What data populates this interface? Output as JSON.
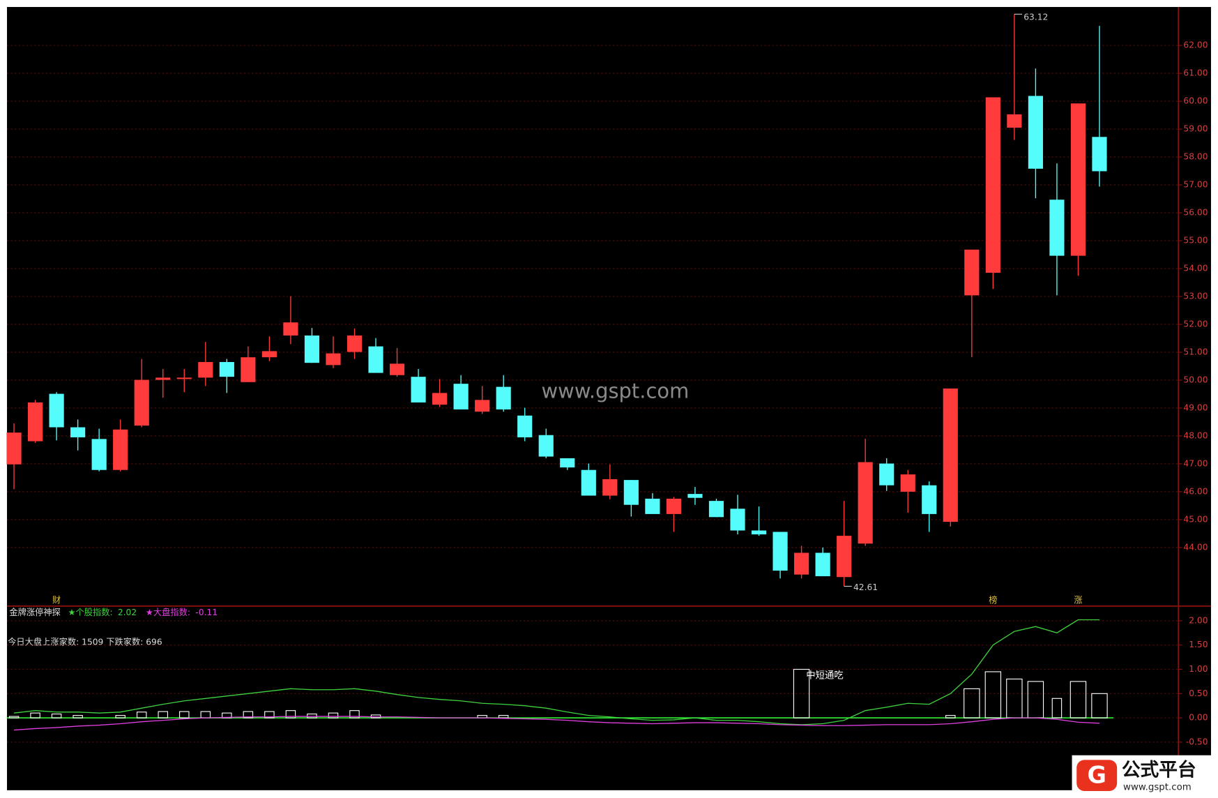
{
  "chart_data": [
    {
      "type": "candlestick",
      "categories": [
        null,
        null,
        null,
        null,
        null,
        null,
        null,
        null,
        null,
        null,
        null,
        null,
        null,
        null,
        null,
        null,
        null,
        null,
        null,
        null,
        null,
        null,
        null,
        null,
        null,
        null,
        null,
        null,
        null,
        null,
        null,
        null,
        null,
        null,
        null,
        null,
        null,
        null,
        null,
        null,
        null,
        null,
        null,
        null,
        null,
        null,
        null,
        null,
        null,
        null,
        null,
        null
      ],
      "open": [
        46.98,
        47.81,
        49.51,
        48.31,
        47.89,
        46.78,
        48.37,
        50.01,
        50.04,
        50.09,
        50.65,
        49.93,
        50.82,
        51.6,
        51.6,
        50.54,
        51.01,
        51.21,
        50.18,
        50.12,
        49.12,
        49.87,
        48.87,
        49.76,
        48.73,
        48.03,
        47.2,
        46.78,
        45.86,
        46.42,
        45.75,
        45.2,
        45.92,
        45.67,
        45.39,
        44.61,
        44.56,
        43.03,
        43.81,
        42.94,
        44.14,
        47.01,
        46.0,
        46.23,
        44.92,
        53.04,
        53.85,
        59.05,
        60.19,
        56.47,
        54.46,
        58.72
      ],
      "high": [
        48.45,
        49.29,
        49.57,
        48.59,
        48.26,
        48.59,
        50.76,
        50.4,
        50.4,
        51.37,
        50.76,
        51.21,
        51.57,
        53.01,
        51.87,
        51.57,
        51.85,
        51.51,
        51.15,
        50.4,
        50.04,
        50.18,
        49.79,
        50.18,
        49.01,
        48.26,
        47.2,
        47.01,
        46.98,
        46.42,
        45.95,
        45.81,
        46.17,
        45.75,
        45.89,
        45.47,
        44.56,
        44.06,
        44.0,
        45.67,
        47.9,
        47.2,
        46.78,
        46.37,
        49.7,
        54.68,
        60.14,
        63.12,
        61.17,
        57.77,
        59.92,
        62.7
      ],
      "low": [
        46.09,
        47.75,
        47.84,
        47.48,
        46.73,
        46.73,
        48.31,
        49.37,
        49.57,
        49.79,
        49.54,
        49.93,
        50.68,
        51.29,
        50.62,
        50.43,
        50.76,
        50.26,
        50.12,
        49.2,
        49.04,
        48.95,
        48.79,
        48.87,
        47.81,
        47.2,
        46.78,
        45.86,
        45.73,
        45.11,
        45.2,
        44.56,
        45.53,
        45.09,
        44.47,
        44.42,
        42.89,
        42.89,
        42.97,
        42.61,
        44.06,
        46.03,
        45.25,
        44.56,
        44.75,
        50.82,
        53.27,
        58.61,
        56.52,
        53.04,
        53.74,
        56.94
      ],
      "close": [
        48.12,
        49.2,
        48.31,
        47.95,
        46.78,
        48.23,
        50.01,
        50.09,
        50.09,
        50.65,
        50.12,
        50.82,
        51.04,
        52.07,
        50.62,
        50.96,
        51.6,
        50.26,
        50.59,
        49.2,
        49.54,
        48.95,
        49.29,
        48.95,
        47.95,
        47.26,
        46.87,
        45.86,
        46.45,
        45.53,
        45.2,
        45.75,
        45.78,
        45.09,
        44.61,
        44.47,
        43.17,
        43.81,
        42.97,
        44.42,
        47.06,
        46.23,
        46.62,
        45.2,
        49.7,
        54.68,
        60.14,
        59.53,
        57.58,
        54.46,
        59.92,
        57.49
      ],
      "up_color": "#ff3b3b",
      "down_color": "#54fcfc",
      "max_label": "63.12",
      "min_label": "42.61",
      "event_labels": [
        null,
        null,
        "财",
        null,
        null,
        null,
        null,
        null,
        null,
        null,
        null,
        null,
        null,
        null,
        null,
        null,
        null,
        null,
        null,
        null,
        null,
        null,
        null,
        null,
        null,
        null,
        null,
        null,
        null,
        null,
        null,
        null,
        null,
        null,
        null,
        null,
        null,
        null,
        null,
        null,
        null,
        null,
        null,
        null,
        null,
        null,
        "榜",
        null,
        null,
        null,
        "涨",
        null
      ],
      "watermark": "www.gspt.com",
      "ylim": [
        41.9,
        63.35
      ],
      "yticks": [
        {
          "value": 44,
          "label": "44.00"
        },
        {
          "value": 45,
          "label": "45.00"
        },
        {
          "value": 46,
          "label": "46.00"
        },
        {
          "value": 47,
          "label": "47.00"
        },
        {
          "value": 48,
          "label": "48.00"
        },
        {
          "value": 49,
          "label": "49.00"
        },
        {
          "value": 50,
          "label": "50.00"
        },
        {
          "value": 51,
          "label": "51.00"
        },
        {
          "value": 52,
          "label": "52.00"
        },
        {
          "value": 53,
          "label": "53.00"
        },
        {
          "value": 54,
          "label": "54.00"
        },
        {
          "value": 55,
          "label": "55.00"
        },
        {
          "value": 56,
          "label": "56.00"
        },
        {
          "value": 57,
          "label": "57.00"
        },
        {
          "value": 58,
          "label": "58.00"
        },
        {
          "value": 59,
          "label": "59.00"
        },
        {
          "value": 60,
          "label": "60.00"
        },
        {
          "value": 61,
          "label": "61.00"
        },
        {
          "value": 62,
          "label": "62.00"
        }
      ],
      "grid": true
    },
    {
      "type": "line",
      "title": "金牌涨停神探",
      "subtitle": "今日大盘上涨家数: 1509 下跌家数: 696",
      "series": [
        {
          "name": "★个股指数:",
          "value_label": "2.02",
          "color": "#3fd23f",
          "values": [
            0.1,
            0.15,
            0.12,
            0.12,
            0.1,
            0.12,
            0.2,
            0.28,
            0.35,
            0.4,
            0.45,
            0.5,
            0.55,
            0.6,
            0.58,
            0.58,
            0.6,
            0.55,
            0.48,
            0.42,
            0.38,
            0.35,
            0.3,
            0.28,
            0.25,
            0.2,
            0.12,
            0.05,
            0.02,
            -0.02,
            -0.05,
            -0.04,
            0.0,
            -0.05,
            -0.05,
            -0.08,
            -0.12,
            -0.14,
            -0.12,
            -0.05,
            0.15,
            0.22,
            0.3,
            0.28,
            0.5,
            0.9,
            1.5,
            1.78,
            1.88,
            1.75,
            2.02,
            2.02
          ]
        },
        {
          "name": "★大盘指数:",
          "value_label": "-0.11",
          "color": "#e040e0",
          "values": [
            -0.25,
            -0.22,
            -0.2,
            -0.17,
            -0.15,
            -0.12,
            -0.08,
            -0.05,
            -0.02,
            0.0,
            0.01,
            0.02,
            0.02,
            0.03,
            0.03,
            0.03,
            0.03,
            0.02,
            0.02,
            0.01,
            0,
            0,
            0,
            -0.01,
            -0.02,
            -0.03,
            -0.05,
            -0.08,
            -0.1,
            -0.11,
            -0.12,
            -0.11,
            -0.1,
            -0.1,
            -0.11,
            -0.12,
            -0.14,
            -0.15,
            -0.16,
            -0.16,
            -0.15,
            -0.14,
            -0.14,
            -0.14,
            -0.12,
            -0.08,
            -0.03,
            0,
            0,
            -0.03,
            -0.09,
            -0.11
          ]
        }
      ],
      "bars": {
        "color": "#ffffff",
        "values": [
          0.03,
          0.1,
          0.08,
          0.05,
          0,
          0.05,
          0.12,
          0.13,
          0.13,
          0.13,
          0.1,
          0.13,
          0.13,
          0.15,
          0.08,
          0.1,
          0.15,
          0.06,
          0,
          0,
          0,
          0,
          0.05,
          0.05,
          0,
          0,
          0,
          0,
          0,
          0,
          0,
          0,
          0,
          0,
          0,
          0,
          0,
          1.0,
          0,
          0,
          0,
          0,
          0,
          0,
          0.05,
          0.6,
          0.95,
          0.8,
          0.75,
          0.4,
          0.75,
          0.5
        ]
      },
      "annotation": "中短通吃",
      "ylim": [
        -1.49,
        2.27
      ],
      "yticks": [
        {
          "value": 2,
          "label": "2.00"
        },
        {
          "value": 1.5,
          "label": "1.50"
        },
        {
          "value": 1,
          "label": "1.00"
        },
        {
          "value": 0.5,
          "label": "0.50"
        },
        {
          "value": 0,
          "label": "0.00"
        },
        {
          "value": -0.5,
          "label": "-0.50"
        }
      ]
    }
  ],
  "logo": {
    "text": "公式平台",
    "url": "www.gspt.com"
  }
}
